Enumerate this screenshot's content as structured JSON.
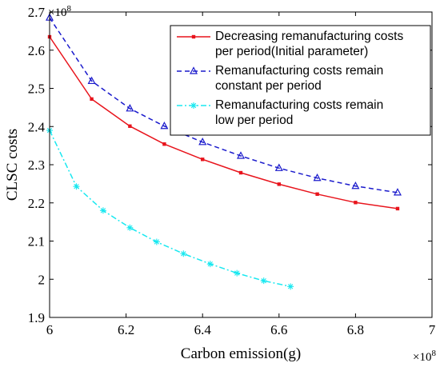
{
  "chart_data": {
    "type": "line",
    "xlabel": "Carbon emission(g)",
    "ylabel": "CLSC costs",
    "x_multiplier": "×10",
    "x_exponent": "8",
    "y_multiplier": "×10",
    "y_exponent": "8",
    "xlim": [
      6.0,
      7.0
    ],
    "ylim": [
      1.9,
      2.7
    ],
    "x_ticks": [
      6.0,
      6.2,
      6.4,
      6.6,
      6.8,
      7.0
    ],
    "x_tick_labels": [
      "6",
      "6.2",
      "6.4",
      "6.6",
      "6.8",
      "7"
    ],
    "y_ticks": [
      1.9,
      2.0,
      2.1,
      2.2,
      2.3,
      2.4,
      2.5,
      2.6,
      2.7
    ],
    "y_tick_labels": [
      "1.9",
      "2",
      "2.1",
      "2.2",
      "2.3",
      "2.4",
      "2.5",
      "2.6",
      "2.7"
    ],
    "grid": false,
    "legend_position": "top-right",
    "series": [
      {
        "name": "Decreasing remanufacturing costs per period(Initial parameter)",
        "legend_lines": [
          "Decreasing remanufacturing costs",
          "per period(Initial parameter)"
        ],
        "color": "#e8141c",
        "marker": "square",
        "dash": "solid",
        "x": [
          6.0,
          6.11,
          6.21,
          6.3,
          6.4,
          6.5,
          6.6,
          6.7,
          6.8,
          6.91
        ],
        "y": [
          2.635,
          2.472,
          2.401,
          2.354,
          2.314,
          2.279,
          2.249,
          2.223,
          2.201,
          2.185
        ]
      },
      {
        "name": "Remanufacturing costs remain constant per period",
        "legend_lines": [
          "Remanufacturing costs remain",
          "constant per period"
        ],
        "color": "#1a1acc",
        "marker": "triangle",
        "dash": "dashed",
        "x": [
          6.0,
          6.11,
          6.21,
          6.3,
          6.4,
          6.5,
          6.6,
          6.7,
          6.8,
          6.91
        ],
        "y": [
          2.685,
          2.519,
          2.447,
          2.401,
          2.359,
          2.323,
          2.291,
          2.265,
          2.244,
          2.227
        ]
      },
      {
        "name": "Remanufacturing costs remain low per period",
        "legend_lines": [
          "Remanufacturing costs remain",
          "low per period"
        ],
        "color": "#18e8f0",
        "marker": "star",
        "dash": "dashdot",
        "x": [
          6.0,
          6.07,
          6.14,
          6.21,
          6.28,
          6.35,
          6.42,
          6.49,
          6.56,
          6.63
        ],
        "y": [
          2.39,
          2.243,
          2.18,
          2.135,
          2.098,
          2.067,
          2.04,
          2.016,
          1.996,
          1.981
        ]
      }
    ]
  }
}
